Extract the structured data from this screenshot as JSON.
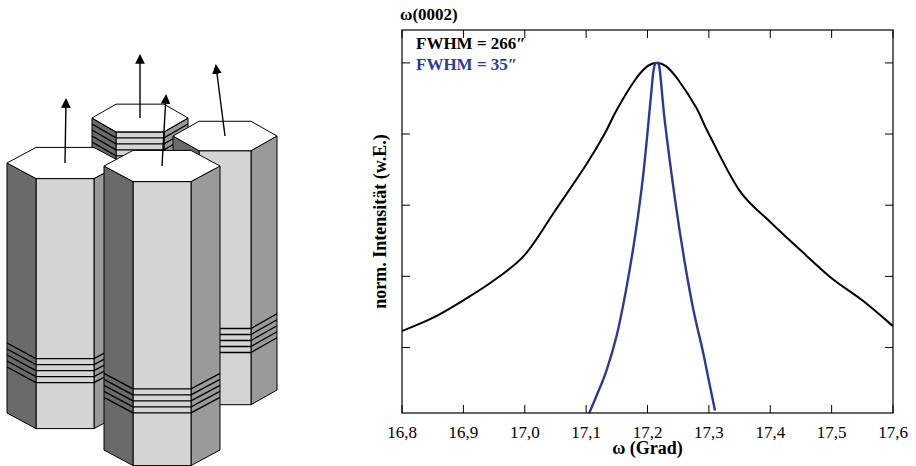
{
  "chart_data": {
    "type": "line",
    "title": "ω(0002)",
    "x_label": "ω (Grad)",
    "y_label": "norm. Intensität (w.E.)",
    "log": "y",
    "grid": false,
    "legend": "top-left",
    "tick_labels": "x",
    "xlim": [
      16.8,
      17.6
    ],
    "ylim": [
      1.2e-05,
      2.9
    ],
    "xticks": [
      {
        "value": 16.8,
        "label": "16,8"
      },
      {
        "value": 16.9,
        "label": "16,9"
      },
      {
        "value": 17.0,
        "label": "17,0"
      },
      {
        "value": 17.1,
        "label": "17,1"
      },
      {
        "value": 17.2,
        "label": "17,2"
      },
      {
        "value": 17.3,
        "label": "17,3"
      },
      {
        "value": 17.4,
        "label": "17,4"
      },
      {
        "value": 17.5,
        "label": "17,5"
      },
      {
        "value": 17.6,
        "label": "17,6"
      }
    ],
    "yticks": [
      1,
      0.1,
      0.01,
      0.001,
      0.0001
    ],
    "series": [
      {
        "name": "FWHM = 266″",
        "color": "#000000",
        "x": [
          16.8,
          16.85,
          16.9,
          16.95,
          17.0,
          17.05,
          17.1,
          17.13,
          17.15,
          17.18,
          17.2,
          17.215,
          17.23,
          17.25,
          17.28,
          17.3,
          17.35,
          17.4,
          17.45,
          17.5,
          17.55,
          17.6
        ],
        "values": [
          0.00017,
          0.00026,
          0.00046,
          0.00088,
          0.002,
          0.0085,
          0.037,
          0.1,
          0.22,
          0.58,
          0.9,
          1,
          0.9,
          0.58,
          0.23,
          0.1,
          0.016,
          0.0058,
          0.0023,
          0.00094,
          0.00046,
          0.0002
        ]
      },
      {
        "name": "FWHM = 35″",
        "color": "#2b3a96",
        "x": [
          17.105,
          17.117,
          17.133,
          17.15,
          17.165,
          17.18,
          17.193,
          17.205,
          17.21,
          17.215,
          17.22,
          17.228,
          17.245,
          17.26,
          17.275,
          17.29,
          17.3,
          17.31
        ],
        "values": [
          1.2e-05,
          2.1e-05,
          4.7e-05,
          0.00015,
          0.00064,
          0.0038,
          0.0265,
          0.3,
          0.8,
          1,
          0.8,
          0.157,
          0.0118,
          0.0017,
          0.00033,
          9e-05,
          3.4e-05,
          1.3e-05
        ]
      }
    ]
  }
}
